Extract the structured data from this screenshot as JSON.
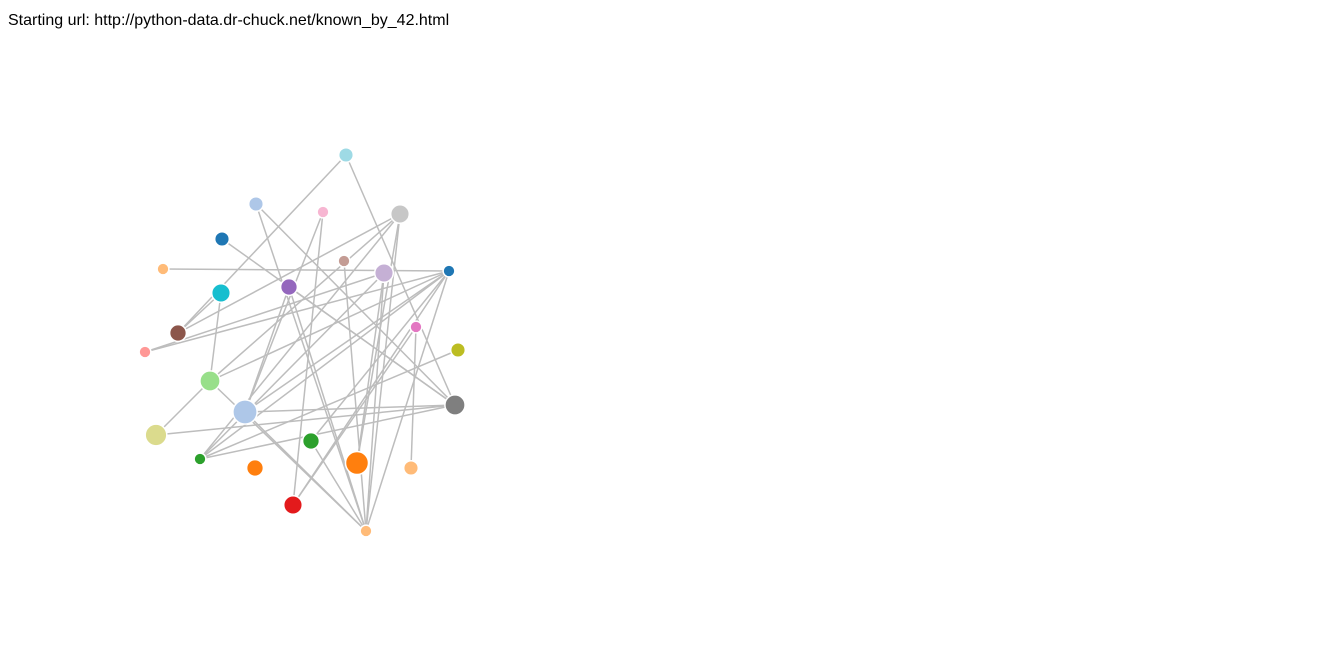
{
  "header": {
    "starting_url_label": "Starting url: http://python-data.dr-chuck.net/known_by_42.html"
  },
  "graph": {
    "link_color": "#bdbdbd",
    "node_border_color": "#ffffff",
    "nodes": [
      {
        "id": "n1",
        "color": "#9edae5",
        "weight": 2
      },
      {
        "id": "n2",
        "color": "#aec7e8",
        "weight": 2
      },
      {
        "id": "n3",
        "color": "#f7b6d2",
        "weight": 1
      },
      {
        "id": "n4",
        "color": "#c7c7c7",
        "weight": 4
      },
      {
        "id": "n5",
        "color": "#1f77b4",
        "weight": 2
      },
      {
        "id": "n6",
        "color": "#c49c94",
        "weight": 1
      },
      {
        "id": "n7",
        "color": "#c5b0d5",
        "weight": 4
      },
      {
        "id": "n8",
        "color": "#1f77b4",
        "weight": 1
      },
      {
        "id": "n9",
        "color": "#ffbb78",
        "weight": 1
      },
      {
        "id": "n10",
        "color": "#17becf",
        "weight": 4
      },
      {
        "id": "n11",
        "color": "#9467bd",
        "weight": 3
      },
      {
        "id": "n12",
        "color": "#e377c2",
        "weight": 1
      },
      {
        "id": "n13",
        "color": "#8c564b",
        "weight": 3
      },
      {
        "id": "n14",
        "color": "#bcbd22",
        "weight": 2
      },
      {
        "id": "n15",
        "color": "#ff9896",
        "weight": 1
      },
      {
        "id": "n16",
        "color": "#98df8a",
        "weight": 5
      },
      {
        "id": "n17",
        "color": "#aec7e8",
        "weight": 8
      },
      {
        "id": "n18",
        "color": "#7f7f7f",
        "weight": 5
      },
      {
        "id": "n19",
        "color": "#dbdb8d",
        "weight": 6
      },
      {
        "id": "n20",
        "color": "#2ca02c",
        "weight": 3
      },
      {
        "id": "n21",
        "color": "#2ca02c",
        "weight": 1
      },
      {
        "id": "n22",
        "color": "#ff7f0e",
        "weight": 3
      },
      {
        "id": "n23",
        "color": "#ff7f0e",
        "weight": 7
      },
      {
        "id": "n24",
        "color": "#ffbb78",
        "weight": 2
      },
      {
        "id": "n25",
        "color": "#e31a1c",
        "weight": 4
      },
      {
        "id": "n26",
        "color": "#ffbb78",
        "weight": 1
      }
    ],
    "links": [
      [
        "n1",
        "n13"
      ],
      [
        "n1",
        "n18"
      ],
      [
        "n2",
        "n18"
      ],
      [
        "n3",
        "n17"
      ],
      [
        "n3",
        "n25"
      ],
      [
        "n4",
        "n13"
      ],
      [
        "n4",
        "n21"
      ],
      [
        "n4",
        "n23"
      ],
      [
        "n4",
        "n26"
      ],
      [
        "n4",
        "n16"
      ],
      [
        "n5",
        "n18"
      ],
      [
        "n6",
        "n26"
      ],
      [
        "n7",
        "n26"
      ],
      [
        "n7",
        "n23"
      ],
      [
        "n7",
        "n21"
      ],
      [
        "n8",
        "n9"
      ],
      [
        "n8",
        "n15"
      ],
      [
        "n8",
        "n17"
      ],
      [
        "n8",
        "n21"
      ],
      [
        "n8",
        "n16"
      ],
      [
        "n8",
        "n20"
      ],
      [
        "n8",
        "n25"
      ],
      [
        "n8",
        "n26"
      ],
      [
        "n10",
        "n13"
      ],
      [
        "n10",
        "n16"
      ],
      [
        "n11",
        "n18"
      ],
      [
        "n11",
        "n17"
      ],
      [
        "n11",
        "n26"
      ],
      [
        "n12",
        "n24"
      ],
      [
        "n12",
        "n25"
      ],
      [
        "n14",
        "n21"
      ],
      [
        "n15",
        "n7"
      ],
      [
        "n16",
        "n26"
      ],
      [
        "n18",
        "n19"
      ],
      [
        "n18",
        "n21"
      ],
      [
        "n18",
        "n17"
      ],
      [
        "n19",
        "n16"
      ],
      [
        "n17",
        "n26"
      ],
      [
        "n20",
        "n26"
      ],
      [
        "n2",
        "n26"
      ]
    ]
  }
}
